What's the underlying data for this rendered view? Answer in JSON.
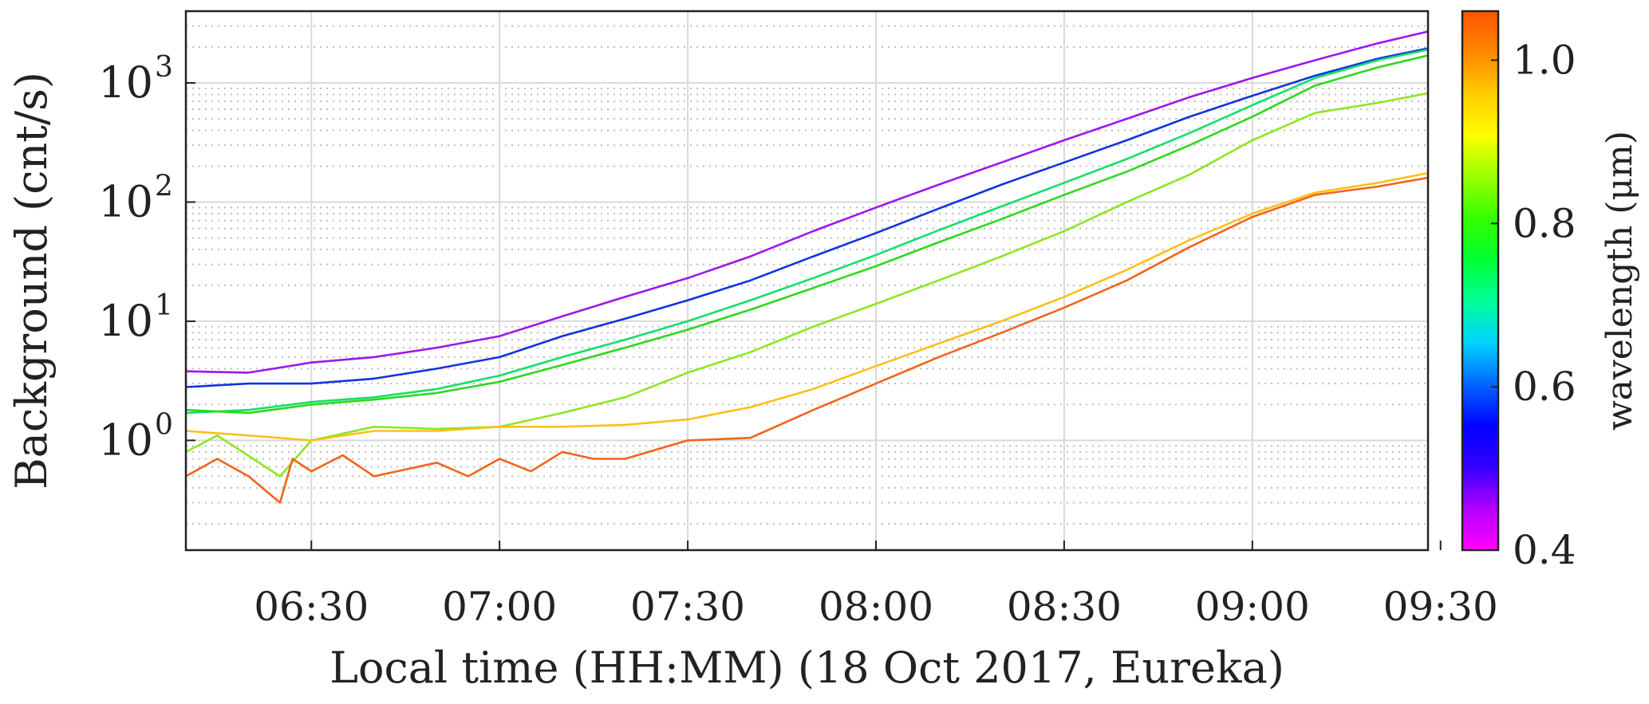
{
  "chart_data": {
    "type": "line",
    "xlabel": "Local time (HH:MM) (18 Oct 2017, Eureka)",
    "ylabel": "Background (cnt/s)",
    "y_scale": "log",
    "x_domain": [
      "06:10",
      "09:28"
    ],
    "y_domain": [
      0.12,
      4000
    ],
    "x_ticks": [
      "06:30",
      "07:00",
      "07:30",
      "08:00",
      "08:30",
      "09:00",
      "09:30"
    ],
    "y_ticks": [
      {
        "value": 1,
        "label": "10",
        "exp": "0"
      },
      {
        "value": 10,
        "label": "10",
        "exp": "1"
      },
      {
        "value": 100,
        "label": "10",
        "exp": "2"
      },
      {
        "value": 1000,
        "label": "10",
        "exp": "3"
      }
    ],
    "grid": true,
    "minor_grid": true,
    "colorbar": {
      "label": "wavelength (μm)",
      "range": [
        0.4,
        1.06
      ],
      "ticks": [
        "0.4",
        "0.6",
        "0.8",
        "1.0"
      ],
      "tick_values": [
        0.4,
        0.6,
        0.8,
        1.0
      ],
      "colors": [
        "#ff00ff",
        "#b300ff",
        "#3300ff",
        "#0000ff",
        "#0066ff",
        "#00d2ff",
        "#00ff99",
        "#00ff33",
        "#33ff00",
        "#99ff00",
        "#ffff00",
        "#ffcc00",
        "#ff8800",
        "#ff5500"
      ]
    },
    "series": [
      {
        "color": "#9b17f0",
        "points": [
          [
            "06:10",
            3.8
          ],
          [
            "06:20",
            3.7
          ],
          [
            "06:30",
            4.5
          ],
          [
            "06:40",
            5.0
          ],
          [
            "06:50",
            6.0
          ],
          [
            "07:00",
            7.5
          ],
          [
            "07:10",
            11
          ],
          [
            "07:20",
            16
          ],
          [
            "07:30",
            23
          ],
          [
            "07:40",
            35
          ],
          [
            "07:50",
            57
          ],
          [
            "08:00",
            90
          ],
          [
            "08:10",
            140
          ],
          [
            "08:20",
            215
          ],
          [
            "08:30",
            330
          ],
          [
            "08:40",
            500
          ],
          [
            "08:50",
            760
          ],
          [
            "09:00",
            1100
          ],
          [
            "09:10",
            1550
          ],
          [
            "09:20",
            2150
          ],
          [
            "09:28",
            2700
          ]
        ]
      },
      {
        "color": "#1333e0",
        "points": [
          [
            "06:10",
            2.8
          ],
          [
            "06:20",
            3.0
          ],
          [
            "06:30",
            3.0
          ],
          [
            "06:40",
            3.3
          ],
          [
            "06:50",
            4.0
          ],
          [
            "07:00",
            5.0
          ],
          [
            "07:10",
            7.5
          ],
          [
            "07:20",
            10.5
          ],
          [
            "07:30",
            15
          ],
          [
            "07:40",
            22
          ],
          [
            "07:50",
            35
          ],
          [
            "08:00",
            55
          ],
          [
            "08:10",
            88
          ],
          [
            "08:20",
            140
          ],
          [
            "08:30",
            215
          ],
          [
            "08:40",
            330
          ],
          [
            "08:50",
            520
          ],
          [
            "09:00",
            780
          ],
          [
            "09:10",
            1150
          ],
          [
            "09:20",
            1600
          ],
          [
            "09:28",
            1950
          ]
        ]
      },
      {
        "color": "#12e06a",
        "points": [
          [
            "06:10",
            1.7
          ],
          [
            "06:20",
            1.8
          ],
          [
            "06:30",
            2.1
          ],
          [
            "06:40",
            2.3
          ],
          [
            "06:50",
            2.7
          ],
          [
            "07:00",
            3.5
          ],
          [
            "07:10",
            5.0
          ],
          [
            "07:20",
            7.0
          ],
          [
            "07:30",
            10
          ],
          [
            "07:40",
            15
          ],
          [
            "07:50",
            23
          ],
          [
            "08:00",
            36
          ],
          [
            "08:10",
            58
          ],
          [
            "08:20",
            92
          ],
          [
            "08:30",
            145
          ],
          [
            "08:40",
            230
          ],
          [
            "08:50",
            380
          ],
          [
            "09:00",
            650
          ],
          [
            "09:10",
            1100
          ],
          [
            "09:20",
            1550
          ],
          [
            "09:28",
            1900
          ]
        ]
      },
      {
        "color": "#2ed81c",
        "points": [
          [
            "06:10",
            1.8
          ],
          [
            "06:20",
            1.7
          ],
          [
            "06:30",
            2.0
          ],
          [
            "06:40",
            2.2
          ],
          [
            "06:50",
            2.5
          ],
          [
            "07:00",
            3.1
          ],
          [
            "07:10",
            4.3
          ],
          [
            "07:20",
            6.0
          ],
          [
            "07:30",
            8.5
          ],
          [
            "07:40",
            12.5
          ],
          [
            "07:50",
            19
          ],
          [
            "08:00",
            29
          ],
          [
            "08:10",
            46
          ],
          [
            "08:20",
            72
          ],
          [
            "08:30",
            115
          ],
          [
            "08:40",
            180
          ],
          [
            "08:50",
            300
          ],
          [
            "09:00",
            520
          ],
          [
            "09:10",
            950
          ],
          [
            "09:20",
            1350
          ],
          [
            "09:28",
            1700
          ]
        ]
      },
      {
        "color": "#8ee622",
        "points": [
          [
            "06:10",
            0.8
          ],
          [
            "06:15",
            1.1
          ],
          [
            "06:25",
            0.5
          ],
          [
            "06:30",
            1.0
          ],
          [
            "06:40",
            1.3
          ],
          [
            "06:50",
            1.25
          ],
          [
            "07:00",
            1.3
          ],
          [
            "07:10",
            1.7
          ],
          [
            "07:20",
            2.3
          ],
          [
            "07:30",
            3.7
          ],
          [
            "07:40",
            5.5
          ],
          [
            "07:50",
            9
          ],
          [
            "08:00",
            14
          ],
          [
            "08:10",
            22
          ],
          [
            "08:20",
            35
          ],
          [
            "08:30",
            57
          ],
          [
            "08:40",
            100
          ],
          [
            "08:50",
            170
          ],
          [
            "09:00",
            330
          ],
          [
            "09:10",
            560
          ],
          [
            "09:20",
            680
          ],
          [
            "09:28",
            820
          ]
        ]
      },
      {
        "color": "#ffbf1a",
        "points": [
          [
            "06:10",
            1.2
          ],
          [
            "06:20",
            1.1
          ],
          [
            "06:30",
            1.0
          ],
          [
            "06:40",
            1.2
          ],
          [
            "06:50",
            1.2
          ],
          [
            "07:00",
            1.3
          ],
          [
            "07:10",
            1.3
          ],
          [
            "07:20",
            1.35
          ],
          [
            "07:30",
            1.5
          ],
          [
            "07:40",
            1.9
          ],
          [
            "07:50",
            2.7
          ],
          [
            "08:00",
            4.2
          ],
          [
            "08:10",
            6.5
          ],
          [
            "08:20",
            10
          ],
          [
            "08:30",
            16
          ],
          [
            "08:40",
            27
          ],
          [
            "08:50",
            48
          ],
          [
            "09:00",
            80
          ],
          [
            "09:10",
            120
          ],
          [
            "09:20",
            145
          ],
          [
            "09:28",
            175
          ]
        ]
      },
      {
        "color": "#f2641b",
        "points": [
          [
            "06:10",
            0.5
          ],
          [
            "06:15",
            0.7
          ],
          [
            "06:20",
            0.5
          ],
          [
            "06:25",
            0.3
          ],
          [
            "06:27",
            0.7
          ],
          [
            "06:30",
            0.55
          ],
          [
            "06:35",
            0.75
          ],
          [
            "06:40",
            0.5
          ],
          [
            "06:50",
            0.65
          ],
          [
            "06:55",
            0.5
          ],
          [
            "07:00",
            0.7
          ],
          [
            "07:05",
            0.55
          ],
          [
            "07:10",
            0.8
          ],
          [
            "07:15",
            0.7
          ],
          [
            "07:20",
            0.7
          ],
          [
            "07:30",
            1.0
          ],
          [
            "07:40",
            1.05
          ],
          [
            "07:50",
            1.8
          ],
          [
            "08:00",
            3.0
          ],
          [
            "08:10",
            5.0
          ],
          [
            "08:20",
            8.0
          ],
          [
            "08:30",
            13
          ],
          [
            "08:40",
            22
          ],
          [
            "08:50",
            42
          ],
          [
            "09:00",
            75
          ],
          [
            "09:10",
            115
          ],
          [
            "09:20",
            135
          ],
          [
            "09:28",
            160
          ]
        ]
      }
    ]
  }
}
